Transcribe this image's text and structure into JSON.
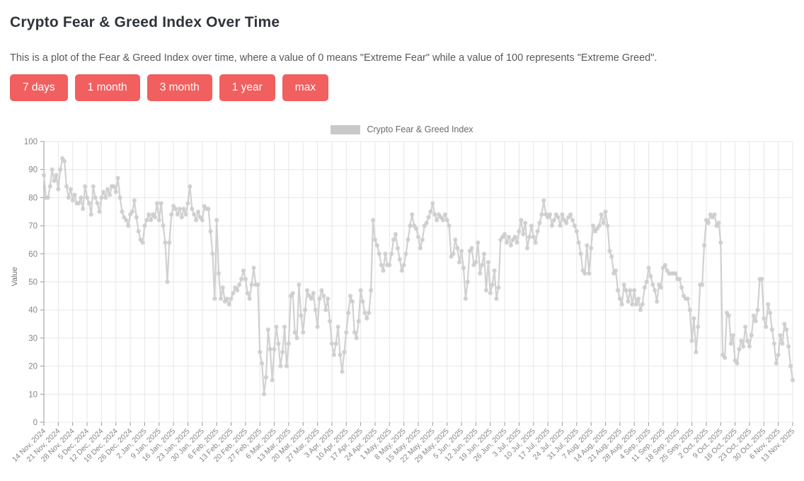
{
  "page": {
    "title": "Crypto Fear & Greed Index Over Time",
    "description": "This is a plot of the Fear & Greed Index over time, where a value of 0 means \"Extreme Fear\" while a value of 100 represents \"Extreme Greed\"."
  },
  "controls": {
    "button_color": "#f15f5f",
    "buttons": [
      {
        "label": "7 days"
      },
      {
        "label": "1 month"
      },
      {
        "label": "3 month"
      },
      {
        "label": "1 year"
      },
      {
        "label": "max"
      }
    ]
  },
  "chart_data": {
    "type": "line",
    "title": "",
    "ylabel": "Value",
    "xlabel": "",
    "ylim": [
      0,
      100
    ],
    "grid": true,
    "legend_position": "top-center",
    "marker": "circle",
    "line_color": "#cccccc",
    "grid_color": "#e7e7e7",
    "axis_color": "#999999",
    "tick_label_color": "#858585",
    "legend": [
      {
        "label": "Crypto Fear & Greed Index",
        "color": "#c9c9c9"
      }
    ],
    "y_ticks": [
      0,
      10,
      20,
      30,
      40,
      50,
      60,
      70,
      80,
      90,
      100
    ],
    "x_tick_labels": [
      "14 Nov, 2024",
      "21 Nov, 2024",
      "28 Nov, 2024",
      "5 Dec, 2024",
      "12 Dec, 2024",
      "19 Dec, 2024",
      "26 Dec, 2024",
      "2 Jan, 2025",
      "9 Jan, 2025",
      "16 Jan, 2025",
      "23 Jan, 2025",
      "30 Jan, 2025",
      "6 Feb, 2025",
      "13 Feb, 2025",
      "20 Feb, 2025",
      "27 Feb, 2025",
      "6 Mar, 2025",
      "13 Mar, 2025",
      "20 Mar, 2025",
      "27 Mar, 2025",
      "3 Apr, 2025",
      "10 Apr, 2025",
      "17 Apr, 2025",
      "24 Apr, 2025",
      "1 May, 2025",
      "8 May, 2025",
      "15 May, 2025",
      "22 May, 2025",
      "29 May, 2025",
      "5 Jun, 2025",
      "12 Jun, 2025",
      "19 Jun, 2025",
      "26 Jun, 2025",
      "3 Jul, 2025",
      "10 Jul, 2025",
      "17 Jul, 2025",
      "24 Jul, 2025",
      "31 Jul, 2025",
      "7 Aug, 2025",
      "14 Aug, 2025",
      "21 Aug, 2025",
      "28 Aug, 2025",
      "4 Sep, 2025",
      "11 Sep, 2025",
      "18 Sep, 2025",
      "25 Sep, 2025",
      "2 Oct, 2025",
      "9 Oct, 2025",
      "16 Oct, 2025",
      "23 Oct, 2025",
      "30 Oct, 2025",
      "6 Nov, 2025",
      "13 Nov, 2025"
    ],
    "x_tick_interval_days": 7,
    "start_date": "14 Nov, 2024",
    "end_date": "13 Nov, 2025",
    "series": [
      {
        "name": "Crypto Fear & Greed Index",
        "values": [
          88,
          80,
          80,
          84,
          90,
          86,
          88,
          83,
          90,
          94,
          93,
          84,
          80,
          83,
          79,
          81,
          78,
          78,
          80,
          76,
          84,
          80,
          78,
          74,
          84,
          80,
          78,
          75,
          80,
          82,
          80,
          83,
          81,
          84,
          84,
          82,
          87,
          80,
          75,
          73,
          72,
          70,
          74,
          75,
          79,
          73,
          68,
          65,
          64,
          70,
          72,
          74,
          72,
          74,
          73,
          78,
          72,
          78,
          70,
          64,
          50,
          64,
          74,
          77,
          76,
          74,
          76,
          73,
          76,
          74,
          78,
          84,
          76,
          74,
          72,
          75,
          73,
          72,
          77,
          76,
          76,
          68,
          60,
          44,
          72,
          53,
          44,
          48,
          43,
          44,
          42,
          44,
          46,
          48,
          47,
          49,
          51,
          54,
          51,
          46,
          44,
          49,
          55,
          49,
          49,
          25,
          21,
          10,
          16,
          33,
          26,
          15,
          26,
          34,
          28,
          20,
          25,
          34,
          20,
          28,
          45,
          46,
          32,
          30,
          49,
          38,
          32,
          40,
          47,
          45,
          44,
          46,
          40,
          34,
          44,
          47,
          45,
          40,
          44,
          36,
          28,
          24,
          28,
          34,
          24,
          18,
          25,
          32,
          39,
          45,
          43,
          32,
          30,
          36,
          47,
          43,
          39,
          37,
          39,
          47,
          72,
          65,
          63,
          60,
          56,
          54,
          60,
          56,
          56,
          60,
          65,
          67,
          62,
          58,
          54,
          56,
          60,
          65,
          70,
          74,
          70,
          69,
          66,
          62,
          65,
          70,
          71,
          73,
          75,
          78,
          74,
          72,
          74,
          73,
          72,
          74,
          72,
          70,
          59,
          60,
          65,
          62,
          57,
          61,
          55,
          44,
          50,
          61,
          62,
          56,
          57,
          64,
          53,
          56,
          60,
          47,
          57,
          46,
          49,
          54,
          44,
          48,
          65,
          66,
          67,
          64,
          66,
          63,
          65,
          66,
          64,
          68,
          72,
          67,
          71,
          62,
          66,
          70,
          66,
          64,
          68,
          71,
          74,
          79,
          74,
          73,
          74,
          70,
          72,
          74,
          73,
          70,
          74,
          72,
          71,
          73,
          74,
          72,
          70,
          68,
          64,
          60,
          54,
          53,
          63,
          53,
          62,
          70,
          68,
          69,
          70,
          74,
          71,
          75,
          70,
          61,
          59,
          53,
          54,
          47,
          44,
          42,
          49,
          47,
          43,
          47,
          42,
          47,
          42,
          44,
          40,
          42,
          48,
          50,
          55,
          52,
          49,
          47,
          43,
          49,
          48,
          55,
          56,
          54,
          53,
          53,
          53,
          53,
          51,
          51,
          48,
          45,
          44,
          44,
          40,
          29,
          37,
          25,
          34,
          49,
          49,
          63,
          72,
          71,
          74,
          73,
          74,
          70,
          71,
          64,
          24,
          23,
          39,
          38,
          28,
          31,
          22,
          21,
          26,
          29,
          27,
          34,
          29,
          27,
          31,
          38,
          36,
          40,
          51,
          51,
          37,
          34,
          42,
          39,
          33,
          28,
          21,
          24,
          31,
          28,
          35,
          33,
          27,
          20,
          15
        ]
      }
    ]
  }
}
